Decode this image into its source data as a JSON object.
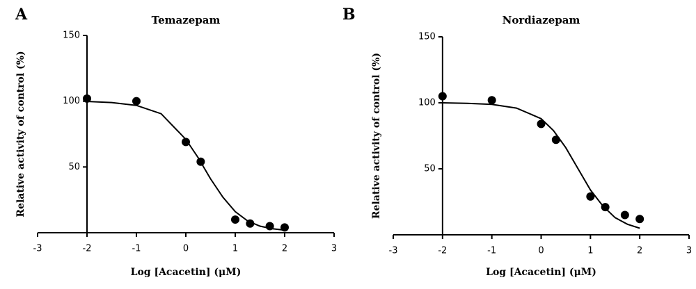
{
  "chart_data": [
    {
      "type": "scatter",
      "panel_label": "A",
      "title": "Temazepam",
      "x_label": "Log [Acacetin] (μM)",
      "y_label": "Relative activity of control (%)",
      "xlim": [
        -3,
        3
      ],
      "xticks": [
        -3,
        -2,
        -1,
        0,
        1,
        2,
        3
      ],
      "ylim": [
        0,
        150
      ],
      "yticks": [
        50,
        100,
        150
      ],
      "yaxis_position": -2,
      "color": "#000000",
      "points": {
        "x": [
          -2,
          -1,
          0,
          0.301,
          1,
          1.301,
          1.699,
          2
        ],
        "values": [
          102,
          100,
          69,
          54,
          10,
          7,
          5,
          4
        ]
      },
      "fit": {
        "x": [
          -2,
          -1.5,
          -1,
          -0.5,
          0,
          0.25,
          0.5,
          0.75,
          1,
          1.25,
          1.5,
          1.75,
          2
        ],
        "values": [
          99.8,
          99,
          96.8,
          90.5,
          71,
          57,
          41,
          27,
          16,
          9,
          5,
          3,
          2
        ]
      }
    },
    {
      "type": "scatter",
      "panel_label": "B",
      "title": "Nordiazepam",
      "x_label": "Log [Acacetin] (μM)",
      "y_label": "Relative activity of control (%)",
      "xlim": [
        -3,
        3
      ],
      "xticks": [
        -3,
        -2,
        -1,
        0,
        1,
        2,
        3
      ],
      "ylim": [
        0,
        150
      ],
      "yticks": [
        50,
        100,
        150
      ],
      "yaxis_position": -2,
      "color": "#000000",
      "points": {
        "x": [
          -2,
          -1,
          0,
          0.301,
          1,
          1.301,
          1.699,
          2
        ],
        "values": [
          105,
          102,
          84,
          72,
          29,
          21,
          15,
          12
        ]
      },
      "fit": {
        "x": [
          -2,
          -1.5,
          -1,
          -0.5,
          0,
          0.25,
          0.5,
          0.75,
          1,
          1.25,
          1.5,
          1.75,
          2
        ],
        "values": [
          100,
          99.6,
          98.8,
          96,
          88,
          79,
          66,
          50,
          34,
          22,
          13,
          8,
          5
        ]
      }
    }
  ]
}
